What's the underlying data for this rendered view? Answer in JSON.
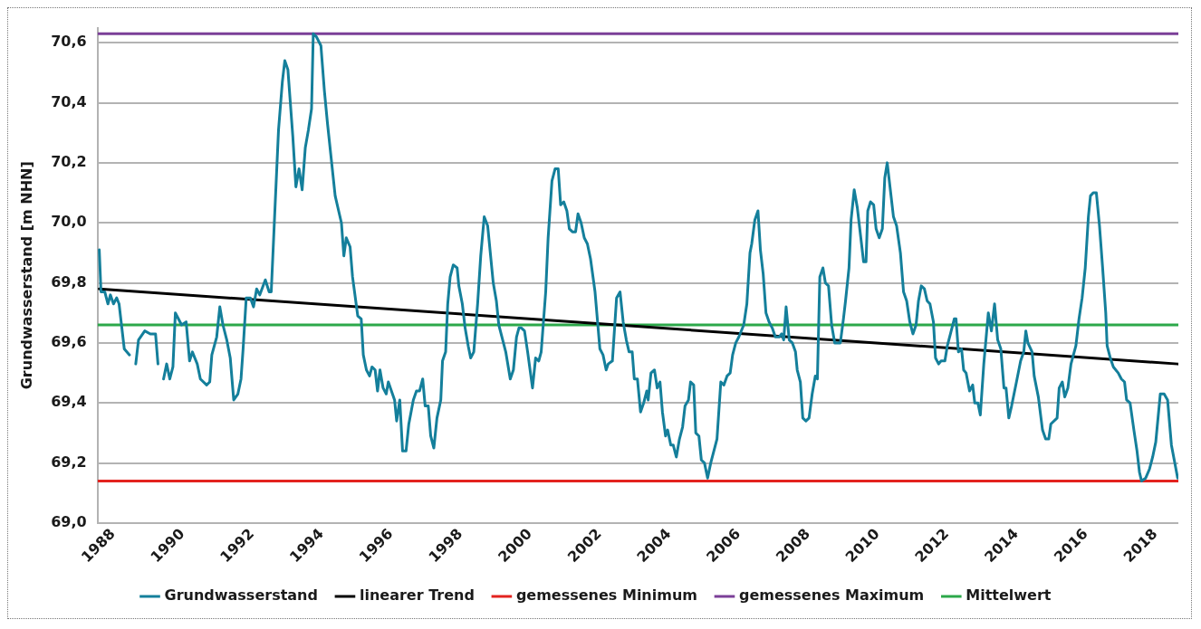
{
  "chart_data": {
    "type": "line",
    "ylabel": "Grundwasserstand [m NHN]",
    "xlim": [
      1987.55,
      2018.66
    ],
    "xticks": [
      1988,
      1990,
      1992,
      1994,
      1996,
      1998,
      2000,
      2002,
      2004,
      2006,
      2008,
      2010,
      2012,
      2014,
      2016,
      2018
    ],
    "ylim": [
      69.0,
      70.65
    ],
    "yticks": [
      {
        "value": 69.0,
        "label": "69,0"
      },
      {
        "value": 69.2,
        "label": "69,2"
      },
      {
        "value": 69.4,
        "label": "69,4"
      },
      {
        "value": 69.6,
        "label": "69,6"
      },
      {
        "value": 69.8,
        "label": "69,8"
      },
      {
        "value": 70.0,
        "label": "70,0"
      },
      {
        "value": 70.2,
        "label": "70,2"
      },
      {
        "value": 70.4,
        "label": "70,4"
      },
      {
        "value": 70.6,
        "label": "70,6"
      }
    ],
    "grid": "y",
    "legend": "bottom",
    "series": [
      {
        "name": "Grundwasserstand",
        "color": "#147f9b",
        "x": [
          1987.6,
          1987.65,
          1987.76,
          1987.85,
          1987.92,
          1988.01,
          1988.1,
          1988.17,
          1988.32,
          1988.47,
          1988.56,
          1988.65,
          1988.73,
          1988.91,
          1989.07,
          1989.22,
          1989.29,
          1989.37,
          1989.45,
          1989.54,
          1989.63,
          1989.72,
          1989.79,
          1989.97,
          1990.1,
          1990.2,
          1990.28,
          1990.42,
          1990.51,
          1990.69,
          1990.78,
          1990.84,
          1990.98,
          1991.07,
          1991.16,
          1991.27,
          1991.37,
          1991.47,
          1991.59,
          1991.68,
          1991.74,
          1991.83,
          1991.95,
          1992.04,
          1992.13,
          1992.22,
          1992.38,
          1992.49,
          1992.55,
          1992.67,
          1992.76,
          1992.87,
          1992.94,
          1993.03,
          1993.17,
          1993.26,
          1993.35,
          1993.44,
          1993.53,
          1993.62,
          1993.71,
          1993.76,
          1993.85,
          1993.98,
          1994.08,
          1994.17,
          1994.39,
          1994.57,
          1994.64,
          1994.71,
          1994.82,
          1994.89,
          1995.04,
          1995.14,
          1995.2,
          1995.29,
          1995.38,
          1995.45,
          1995.54,
          1995.61,
          1995.68,
          1995.77,
          1995.86,
          1995.92,
          1996.01,
          1996.1,
          1996.16,
          1996.25,
          1996.33,
          1996.43,
          1996.51,
          1996.64,
          1996.73,
          1996.82,
          1996.91,
          1996.98,
          1997.07,
          1997.14,
          1997.23,
          1997.32,
          1997.43,
          1997.48,
          1997.57,
          1997.63,
          1997.7,
          1997.79,
          1997.9,
          1997.95,
          1998.05,
          1998.13,
          1998.22,
          1998.29,
          1998.38,
          1998.49,
          1998.58,
          1998.68,
          1998.78,
          1998.94,
          1999.03,
          1999.1,
          1999.19,
          1999.3,
          1999.43,
          1999.52,
          1999.61,
          1999.68,
          1999.75,
          1999.84,
          1999.93,
          2000.07,
          2000.16,
          2000.25,
          2000.32,
          2000.45,
          2000.52,
          2000.63,
          2000.72,
          2000.81,
          2000.88,
          2000.97,
          2001.06,
          2001.13,
          2001.22,
          2001.31,
          2001.38,
          2001.47,
          2001.56,
          2001.65,
          2001.74,
          2001.87,
          2002.01,
          2002.1,
          2002.19,
          2002.25,
          2002.37,
          2002.49,
          2002.59,
          2002.68,
          2002.77,
          2002.85,
          2002.94,
          2003.0,
          2003.09,
          2003.18,
          2003.27,
          2003.36,
          2003.4,
          2003.48,
          2003.58,
          2003.66,
          2003.74,
          2003.81,
          2003.9,
          2003.96,
          2004.05,
          2004.12,
          2004.21,
          2004.3,
          2004.39,
          2004.46,
          2004.56,
          2004.62,
          2004.71,
          2004.77,
          2004.86,
          2004.93,
          2005.02,
          2005.11,
          2005.2,
          2005.29,
          2005.38,
          2005.49,
          2005.58,
          2005.67,
          2005.76,
          2005.83,
          2005.92,
          2006.01,
          2006.15,
          2006.24,
          2006.33,
          2006.38,
          2006.47,
          2006.56,
          2006.63,
          2006.71,
          2006.79,
          2006.88,
          2006.97,
          2007.06,
          2007.17,
          2007.24,
          2007.3,
          2007.37,
          2007.46,
          2007.55,
          2007.64,
          2007.69,
          2007.78,
          2007.85,
          2007.94,
          2008.03,
          2008.12,
          2008.21,
          2008.27,
          2008.34,
          2008.43,
          2008.5,
          2008.59,
          2008.68,
          2008.77,
          2008.93,
          2009.02,
          2009.08,
          2009.18,
          2009.24,
          2009.33,
          2009.42,
          2009.54,
          2009.6,
          2009.67,
          2009.72,
          2009.8,
          2009.89,
          2009.96,
          2010.05,
          2010.14,
          2010.21,
          2010.28,
          2010.37,
          2010.46,
          2010.55,
          2010.66,
          2010.75,
          2010.84,
          2010.93,
          2011.02,
          2011.11,
          2011.18,
          2011.26,
          2011.35,
          2011.43,
          2011.51,
          2011.61,
          2011.67,
          2011.76,
          2011.83,
          2011.94,
          2012.01,
          2012.1,
          2012.21,
          2012.26,
          2012.33,
          2012.42,
          2012.48,
          2012.55,
          2012.65,
          2012.74,
          2012.8,
          2012.89,
          2012.96,
          2013.06,
          2013.19,
          2013.28,
          2013.37,
          2013.46,
          2013.55,
          2013.64,
          2013.7,
          2013.78,
          2013.86,
          2014.0,
          2014.12,
          2014.21,
          2014.27,
          2014.33,
          2014.45,
          2014.51,
          2014.63,
          2014.75,
          2014.84,
          2014.93,
          2014.99,
          2015.17,
          2015.23,
          2015.32,
          2015.39,
          2015.48,
          2015.57,
          2015.71,
          2015.8,
          2015.89,
          2015.98,
          2016.07,
          2016.13,
          2016.21,
          2016.3,
          2016.39,
          2016.48,
          2016.57,
          2016.61,
          2016.7,
          2016.79,
          2016.93,
          2017.02,
          2017.11,
          2017.17,
          2017.27,
          2017.38,
          2017.47,
          2017.54,
          2017.6,
          2017.72,
          2017.83,
          2017.92,
          2018.01,
          2018.14,
          2018.25,
          2018.35,
          2018.46,
          2018.64
        ],
        "values": [
          69.91,
          69.77,
          69.77,
          69.73,
          69.76,
          69.73,
          69.75,
          69.73,
          69.58,
          69.56,
          null,
          69.53,
          69.61,
          69.64,
          69.63,
          69.63,
          69.53,
          null,
          69.48,
          69.53,
          69.48,
          69.52,
          69.7,
          69.66,
          69.67,
          69.54,
          69.57,
          69.53,
          69.48,
          69.46,
          69.47,
          69.56,
          69.62,
          69.72,
          69.66,
          69.61,
          69.55,
          69.41,
          69.43,
          69.48,
          69.58,
          69.75,
          69.75,
          69.72,
          69.78,
          69.76,
          69.81,
          69.77,
          69.77,
          70.08,
          70.31,
          70.47,
          70.54,
          70.51,
          70.29,
          70.12,
          70.18,
          70.11,
          70.25,
          70.31,
          70.38,
          70.63,
          70.62,
          70.59,
          70.44,
          70.33,
          70.09,
          70.0,
          69.89,
          69.95,
          69.92,
          69.82,
          69.69,
          69.68,
          69.56,
          69.51,
          69.49,
          69.52,
          69.51,
          69.44,
          69.51,
          69.45,
          69.43,
          69.47,
          69.44,
          69.41,
          69.34,
          69.41,
          69.24,
          69.24,
          69.33,
          69.41,
          69.44,
          69.44,
          69.48,
          69.39,
          69.39,
          69.29,
          69.25,
          69.35,
          69.41,
          69.54,
          69.57,
          69.73,
          69.82,
          69.86,
          69.85,
          69.79,
          69.73,
          69.65,
          69.59,
          69.55,
          69.57,
          69.73,
          69.89,
          70.02,
          69.99,
          69.8,
          69.74,
          69.66,
          69.62,
          69.57,
          69.48,
          69.51,
          69.62,
          69.65,
          69.65,
          69.64,
          69.57,
          69.45,
          69.55,
          69.54,
          69.57,
          69.77,
          69.95,
          70.14,
          70.18,
          70.18,
          70.06,
          70.07,
          70.04,
          69.98,
          69.97,
          69.97,
          70.03,
          70.0,
          69.95,
          69.93,
          69.88,
          69.77,
          69.58,
          69.56,
          69.51,
          69.53,
          69.54,
          69.75,
          69.77,
          69.67,
          69.61,
          69.57,
          69.57,
          69.48,
          69.48,
          69.37,
          69.4,
          69.44,
          69.41,
          69.5,
          69.51,
          69.45,
          69.47,
          69.37,
          69.29,
          69.31,
          69.26,
          69.26,
          69.22,
          69.28,
          69.32,
          69.39,
          69.41,
          69.47,
          69.46,
          69.3,
          69.29,
          69.21,
          69.2,
          69.15,
          69.2,
          69.24,
          69.28,
          69.47,
          69.46,
          69.49,
          69.5,
          69.56,
          69.6,
          69.62,
          69.66,
          69.73,
          69.9,
          69.93,
          70.01,
          70.04,
          69.91,
          69.83,
          69.7,
          69.67,
          69.65,
          69.62,
          69.62,
          69.63,
          69.61,
          69.72,
          69.61,
          69.6,
          69.57,
          69.51,
          69.47,
          69.35,
          69.34,
          69.35,
          69.43,
          69.49,
          69.48,
          69.82,
          69.85,
          69.8,
          69.79,
          69.66,
          69.6,
          69.6,
          69.68,
          69.74,
          69.85,
          70.01,
          70.11,
          70.05,
          69.93,
          69.87,
          69.87,
          70.04,
          70.07,
          70.06,
          69.98,
          69.95,
          69.98,
          70.15,
          70.2,
          70.11,
          70.02,
          69.99,
          69.9,
          69.77,
          69.74,
          69.67,
          69.63,
          69.66,
          69.74,
          69.79,
          69.78,
          69.74,
          69.73,
          69.67,
          69.55,
          69.53,
          69.54,
          69.54,
          69.59,
          69.63,
          69.68,
          69.68,
          69.57,
          69.58,
          69.51,
          69.5,
          69.44,
          69.46,
          69.4,
          69.4,
          69.36,
          69.53,
          69.7,
          69.64,
          69.73,
          69.61,
          69.58,
          69.45,
          69.45,
          69.35,
          69.39,
          69.47,
          69.54,
          69.57,
          69.64,
          69.6,
          69.57,
          69.49,
          69.42,
          69.31,
          69.28,
          69.28,
          69.33,
          69.35,
          69.45,
          69.47,
          69.42,
          69.45,
          69.53,
          69.59,
          69.68,
          69.75,
          69.85,
          70.02,
          70.09,
          70.1,
          70.1,
          69.99,
          69.85,
          69.7,
          69.59,
          69.55,
          69.52,
          69.5,
          69.48,
          69.47,
          69.41,
          69.4,
          69.31,
          69.24,
          69.17,
          69.14,
          69.15,
          69.18,
          69.22,
          69.27,
          69.43,
          69.43,
          69.41,
          69.26,
          69.15
        ]
      },
      {
        "name": "linearer Trend",
        "color": "#000000",
        "x": [
          1987.6,
          2018.64
        ],
        "values": [
          69.78,
          69.53
        ]
      }
    ],
    "ref_lines": [
      {
        "axis": "y",
        "value": 69.14,
        "label": "gemessenes Minimum",
        "color": "#e3231f"
      },
      {
        "axis": "y",
        "value": 70.63,
        "label": "gemessenes Maximum",
        "color": "#7b3f98"
      },
      {
        "axis": "y",
        "value": 69.66,
        "label": "Mittelwert",
        "color": "#2ca84a"
      }
    ]
  }
}
